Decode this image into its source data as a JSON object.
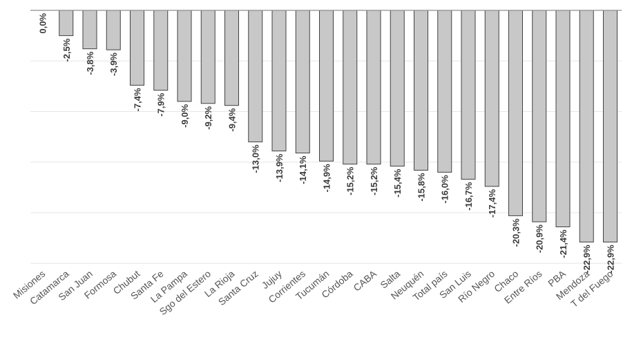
{
  "chart_data": {
    "type": "bar",
    "categories": [
      "Misiones",
      "Catamarca",
      "San Juan",
      "Formosa",
      "Chubut",
      "Santa Fe",
      "La Pampa",
      "Sgo del Estero",
      "La Rioja",
      "Santa Cruz",
      "Jujuy",
      "Corrientes",
      "Tucumán",
      "Córdoba",
      "CABA",
      "Salta",
      "Neuquén",
      "Total país",
      "San Luis",
      "Río Negro",
      "Chaco",
      "Entre Ríos",
      "PBA",
      "Mendoza",
      "T del Fuego"
    ],
    "values": [
      0.0,
      -2.5,
      -3.8,
      -3.9,
      -7.4,
      -7.9,
      -9.0,
      -9.2,
      -9.4,
      -13.0,
      -13.9,
      -14.1,
      -14.9,
      -15.2,
      -15.2,
      -15.4,
      -15.8,
      -16.0,
      -16.7,
      -17.4,
      -20.3,
      -20.9,
      -21.4,
      -22.9,
      -22.9
    ],
    "labels": [
      "0,0%",
      "-2,5%",
      "-3,8%",
      "-3,9%",
      "-7,4%",
      "-7,9%",
      "-9,0%",
      "-9,2%",
      "-9,4%",
      "-13,0%",
      "-13,9%",
      "-14,1%",
      "-14,9%",
      "-15,2%",
      "-15,2%",
      "-15,4%",
      "-15,8%",
      "-16,0%",
      "-16,7%",
      "-17,4%",
      "-20,3%",
      "-20,9%",
      "-21,4%",
      "-22,9%",
      "-22,9%"
    ],
    "title": "",
    "xlabel": "",
    "ylabel": "",
    "ylim": [
      -25,
      0
    ],
    "grid": true,
    "bar_color": "#c8c8c8",
    "bar_edge_color": "#404040",
    "label_color": "#3a3a3a",
    "category_color": "#555555"
  }
}
